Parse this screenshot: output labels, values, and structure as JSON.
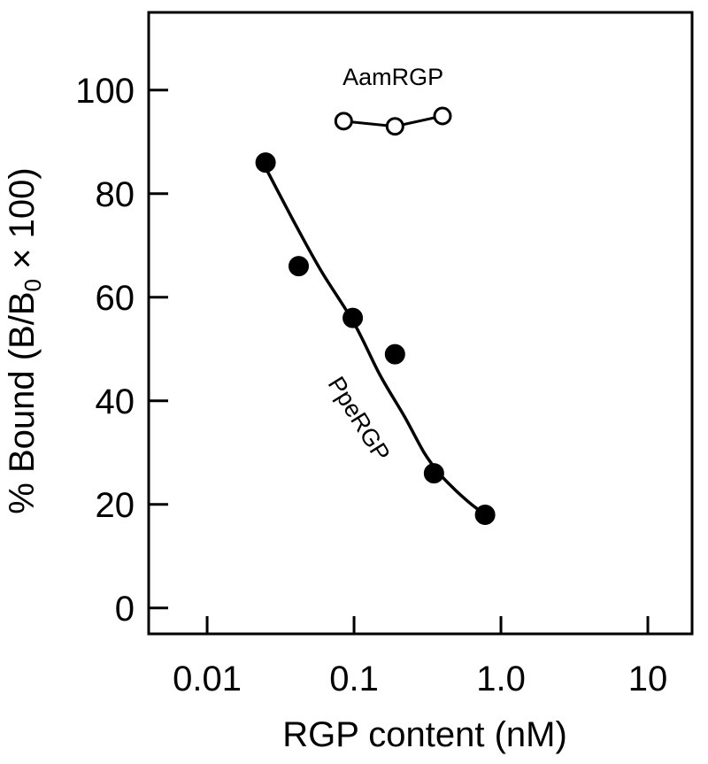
{
  "chart_data": {
    "type": "scatter",
    "xscale": "log",
    "xlim": [
      0.004,
      20
    ],
    "ylim": [
      -5,
      115
    ],
    "xticks": [
      {
        "value": 0.01,
        "label": "0.01"
      },
      {
        "value": 0.1,
        "label": "0.1"
      },
      {
        "value": 1,
        "label": "1.0"
      },
      {
        "value": 10,
        "label": "10"
      }
    ],
    "yticks": [
      {
        "value": 0,
        "label": "0"
      },
      {
        "value": 20,
        "label": "20"
      },
      {
        "value": 40,
        "label": "40"
      },
      {
        "value": 60,
        "label": "60"
      },
      {
        "value": 80,
        "label": "80"
      },
      {
        "value": 100,
        "label": "100"
      }
    ],
    "xlabel": "RGP content (nM)",
    "ylabel": {
      "main": "% Bound (B/B",
      "sub": "0",
      "tail": " × 100)"
    },
    "grid": false,
    "legend": "none",
    "series": [
      {
        "name": "AamRGP",
        "marker": "open-circle",
        "connected": true,
        "x": [
          0.085,
          0.19,
          0.4
        ],
        "y": [
          94,
          93,
          95
        ]
      },
      {
        "name": "PpeRGP",
        "marker": "filled-circle",
        "fit_curve": true,
        "x": [
          0.025,
          0.042,
          0.098,
          0.19,
          0.35,
          0.78
        ],
        "y": [
          86,
          66,
          56,
          49,
          26,
          18
        ]
      }
    ],
    "fit_curve": {
      "series": "PpeRGP",
      "x": [
        0.025,
        0.04,
        0.06,
        0.1,
        0.15,
        0.22,
        0.3,
        0.38,
        0.48,
        0.6,
        0.7,
        0.78
      ],
      "y": [
        85,
        74,
        65,
        55,
        45,
        37,
        30,
        26,
        23,
        20.5,
        19,
        18
      ]
    }
  }
}
